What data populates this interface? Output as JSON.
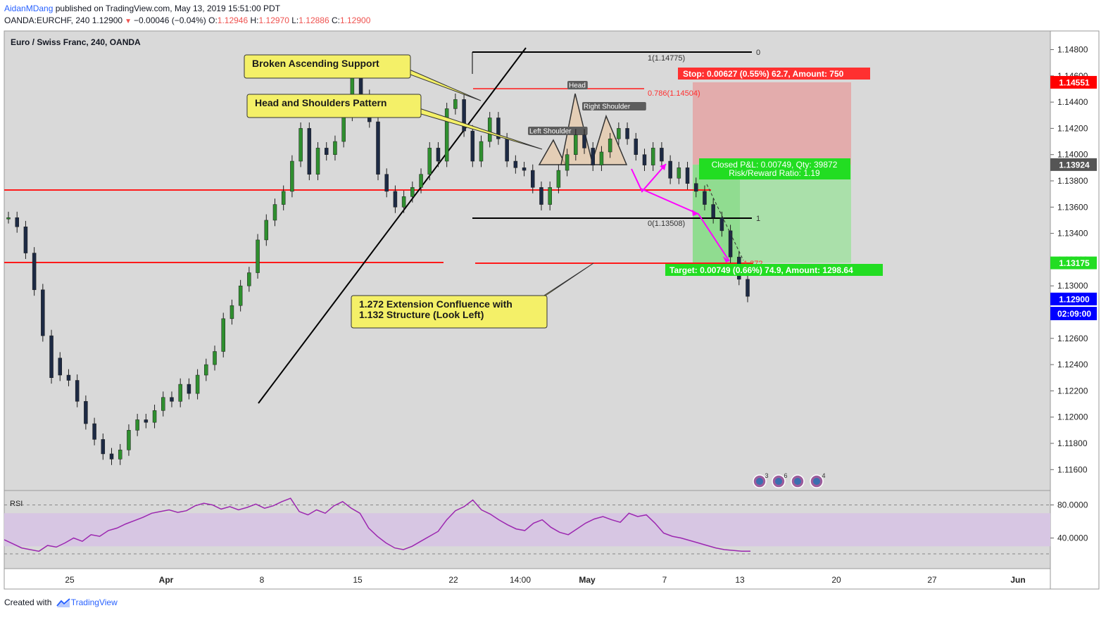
{
  "header": {
    "author": "AidanMDang",
    "published": "published on TradingView.com, May 13, 2019 15:51:00 PDT",
    "symbol": "OANDA:EURCHF, 240",
    "last": "1.12900",
    "change": "−0.00046 (−0.04%)",
    "open_label": "O:",
    "open": "1.12946",
    "high_label": "H:",
    "high": "1.12970",
    "low_label": "L:",
    "low": "1.12886",
    "close_label": "C:",
    "close": "1.12900"
  },
  "footer": {
    "created_with": "Created with",
    "brand": "TradingView"
  },
  "colors": {
    "red_line": "#ff1a1a",
    "candle": "#2f8f2f",
    "rsi_line": "#9c27b0",
    "rsi_fill": "#d7c6e3",
    "stop_zone": "#e4aaaa",
    "target_zone": "#a8e0a8",
    "stop_label": "#ff3030",
    "target_label": "#22dd22",
    "magenta": "#ff00ff",
    "callout_fill": "#f4f068",
    "last_price_bg": "#0000ff"
  },
  "chart_data": {
    "type": "candlestick",
    "title": "Euro / Swiss Franc, 240, OANDA",
    "ylim": [
      1.1145,
      1.1498
    ],
    "price_axis_ticks": [
      "1.14800",
      "1.14600",
      "1.14400",
      "1.14200",
      "1.14000",
      "1.13800",
      "1.13600",
      "1.13400",
      "1.13200",
      "1.13000",
      "1.12800",
      "1.12600",
      "1.12400",
      "1.12200",
      "1.12000",
      "1.11800",
      "1.11600"
    ],
    "time_axis_labels": [
      "25",
      "Apr",
      "8",
      "15",
      "22",
      "14:00",
      "May",
      "7",
      "13",
      "20",
      "27",
      "Jun"
    ],
    "price_flags": [
      {
        "value": 1.14551,
        "text": "1.14551",
        "color": "#ff0000"
      },
      {
        "value": 1.13924,
        "text": "1.13924",
        "color": "#555555"
      },
      {
        "value": 1.13175,
        "text": "1.13175",
        "color": "#22dd22"
      },
      {
        "value": 1.129,
        "text": "1.12900",
        "color": "#0000ff"
      }
    ],
    "countdown": "02:09:00",
    "path_points": [
      [
        1.1352,
        1.1352
      ],
      [
        1.1345,
        1.1352
      ],
      [
        1.1325,
        1.1345
      ],
      [
        1.1297,
        1.1325
      ],
      [
        1.1262,
        1.1297
      ],
      [
        1.123,
        1.1262
      ],
      [
        1.1232,
        1.1245
      ],
      [
        1.1228,
        1.1232
      ],
      [
        1.1212,
        1.1228
      ],
      [
        1.1195,
        1.1212
      ],
      [
        1.1183,
        1.1195
      ],
      [
        1.1172,
        1.1183
      ],
      [
        1.1168,
        1.1172
      ],
      [
        1.1175,
        1.1168
      ],
      [
        1.119,
        1.1175
      ],
      [
        1.1198,
        1.119
      ],
      [
        1.1196,
        1.1198
      ],
      [
        1.1205,
        1.1196
      ],
      [
        1.1215,
        1.1205
      ],
      [
        1.1212,
        1.1215
      ],
      [
        1.1225,
        1.1212
      ],
      [
        1.1218,
        1.1225
      ],
      [
        1.1232,
        1.1218
      ],
      [
        1.124,
        1.1232
      ],
      [
        1.125,
        1.124
      ],
      [
        1.1275,
        1.125
      ],
      [
        1.1285,
        1.1275
      ],
      [
        1.13,
        1.1285
      ],
      [
        1.131,
        1.13
      ],
      [
        1.1335,
        1.131
      ],
      [
        1.135,
        1.1335
      ],
      [
        1.1362,
        1.135
      ],
      [
        1.1372,
        1.1362
      ],
      [
        1.1395,
        1.1372
      ],
      [
        1.142,
        1.1395
      ],
      [
        1.1385,
        1.142
      ],
      [
        1.1405,
        1.1385
      ],
      [
        1.14,
        1.1405
      ],
      [
        1.141,
        1.14
      ],
      [
        1.143,
        1.141
      ],
      [
        1.146,
        1.143
      ],
      [
        1.1445,
        1.146
      ],
      [
        1.1425,
        1.1445
      ],
      [
        1.1385,
        1.1425
      ],
      [
        1.1372,
        1.1385
      ],
      [
        1.136,
        1.1372
      ],
      [
        1.1368,
        1.136
      ],
      [
        1.1375,
        1.1368
      ],
      [
        1.1385,
        1.1375
      ],
      [
        1.1405,
        1.1385
      ],
      [
        1.1395,
        1.1405
      ],
      [
        1.1435,
        1.1395
      ],
      [
        1.1442,
        1.1435
      ],
      [
        1.1418,
        1.1442
      ],
      [
        1.1395,
        1.1418
      ],
      [
        1.141,
        1.1395
      ],
      [
        1.1428,
        1.141
      ],
      [
        1.1412,
        1.1428
      ],
      [
        1.1395,
        1.1412
      ],
      [
        1.139,
        1.1395
      ],
      [
        1.1388,
        1.139
      ],
      [
        1.1375,
        1.1388
      ],
      [
        1.1362,
        1.1375
      ],
      [
        1.1375,
        1.1362
      ],
      [
        1.1388,
        1.1375
      ],
      [
        1.14,
        1.1388
      ],
      [
        1.1415,
        1.14
      ],
      [
        1.1405,
        1.1415
      ],
      [
        1.1392,
        1.1405
      ],
      [
        1.1402,
        1.1392
      ],
      [
        1.1412,
        1.1402
      ],
      [
        1.142,
        1.1412
      ],
      [
        1.1412,
        1.142
      ],
      [
        1.14,
        1.1412
      ],
      [
        1.1392,
        1.14
      ],
      [
        1.1405,
        1.1392
      ],
      [
        1.1395,
        1.1405
      ],
      [
        1.1382,
        1.1395
      ],
      [
        1.139,
        1.1382
      ],
      [
        1.1378,
        1.139
      ],
      [
        1.1372,
        1.1378
      ],
      [
        1.1362,
        1.1372
      ],
      [
        1.1352,
        1.1362
      ],
      [
        1.1342,
        1.1352
      ],
      [
        1.1322,
        1.1342
      ],
      [
        1.1305,
        1.1322
      ],
      [
        1.1292,
        1.1305
      ]
    ],
    "rsi": {
      "label": "RSI",
      "ylim": [
        20,
        90
      ],
      "ticks": [
        "80.0000",
        "40.0000"
      ],
      "band": [
        30,
        70
      ],
      "values": [
        38,
        33,
        28,
        26,
        24,
        31,
        29,
        34,
        40,
        36,
        44,
        42,
        49,
        52,
        57,
        61,
        65,
        70,
        72,
        74,
        71,
        73,
        79,
        82,
        80,
        75,
        78,
        74,
        77,
        81,
        76,
        79,
        84,
        88,
        72,
        68,
        74,
        70,
        79,
        84,
        76,
        70,
        52,
        42,
        34,
        28,
        26,
        30,
        36,
        42,
        48,
        62,
        73,
        78,
        86,
        74,
        69,
        62,
        56,
        51,
        49,
        58,
        62,
        53,
        47,
        44,
        51,
        58,
        63,
        66,
        62,
        59,
        70,
        66,
        68,
        58,
        46,
        42,
        40,
        37,
        34,
        31,
        28,
        26,
        25,
        24,
        24
      ]
    }
  },
  "annotations": {
    "broken_support": "Broken Ascending Support",
    "head_shoulders": "Head and Shoulders Pattern",
    "extension_line1": "1.272 Extension Confluence with",
    "extension_line2": "1.132 Structure (Look Left)",
    "head": "Head",
    "left_shoulder": "Left Shoulder",
    "right_shoulder": "Right Shoulder",
    "fib_top": "1(1.14775)",
    "fib_top_right": "0",
    "fib_786": "0.786(1.14504)",
    "fib_bottom": "0(1.13508)",
    "fib_bottom_right": "1",
    "ext_label": "1.272",
    "stop_label": "Stop: 0.00627 (0.55%) 62.7, Amount: 750",
    "closed_line1": "Closed P&L: 0.00749, Qty: 39872",
    "closed_line2": "Risk/Reward Ratio: 1.19",
    "target_label": "Target: 0.00749 (0.66%) 74.9, Amount: 1298.64",
    "badge_counts": [
      "3",
      "6",
      "",
      "4"
    ]
  }
}
